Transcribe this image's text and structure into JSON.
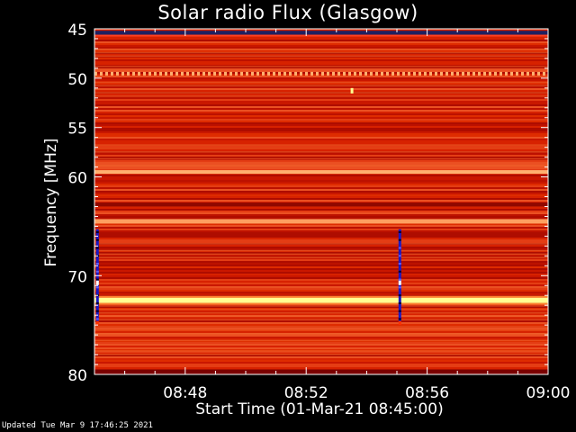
{
  "chart_data": {
    "type": "heatmap",
    "title": "Solar radio Flux (Glasgow)",
    "xlabel": "Start Time (01-Mar-21 08:45:00)",
    "ylabel": "Frequency [MHz]",
    "x_ticks": [
      "08:48",
      "08:52",
      "08:56",
      "09:00"
    ],
    "y_ticks": [
      "45",
      "50",
      "55",
      "60",
      "70",
      "80"
    ],
    "xlim": [
      "08:45:00",
      "09:00:00"
    ],
    "ylim": [
      80,
      45
    ],
    "y_tick_values": [
      45,
      50,
      55,
      60,
      70,
      80
    ],
    "x_tick_minutes": [
      48,
      52,
      56,
      60
    ],
    "bright_bands_mhz": [
      49.5,
      59.5,
      64.5,
      72.5
    ],
    "vertical_burst_times": [
      "08:45:05",
      "08:55:05"
    ],
    "colormap": [
      "#000000",
      "#1010c0",
      "#8b0000",
      "#c00000",
      "#e02000",
      "#ff6030",
      "#ffb080",
      "#ffff80",
      "#ffffff"
    ]
  },
  "footer": {
    "updated": "Updated Tue Mar  9 17:46:25 2021"
  }
}
